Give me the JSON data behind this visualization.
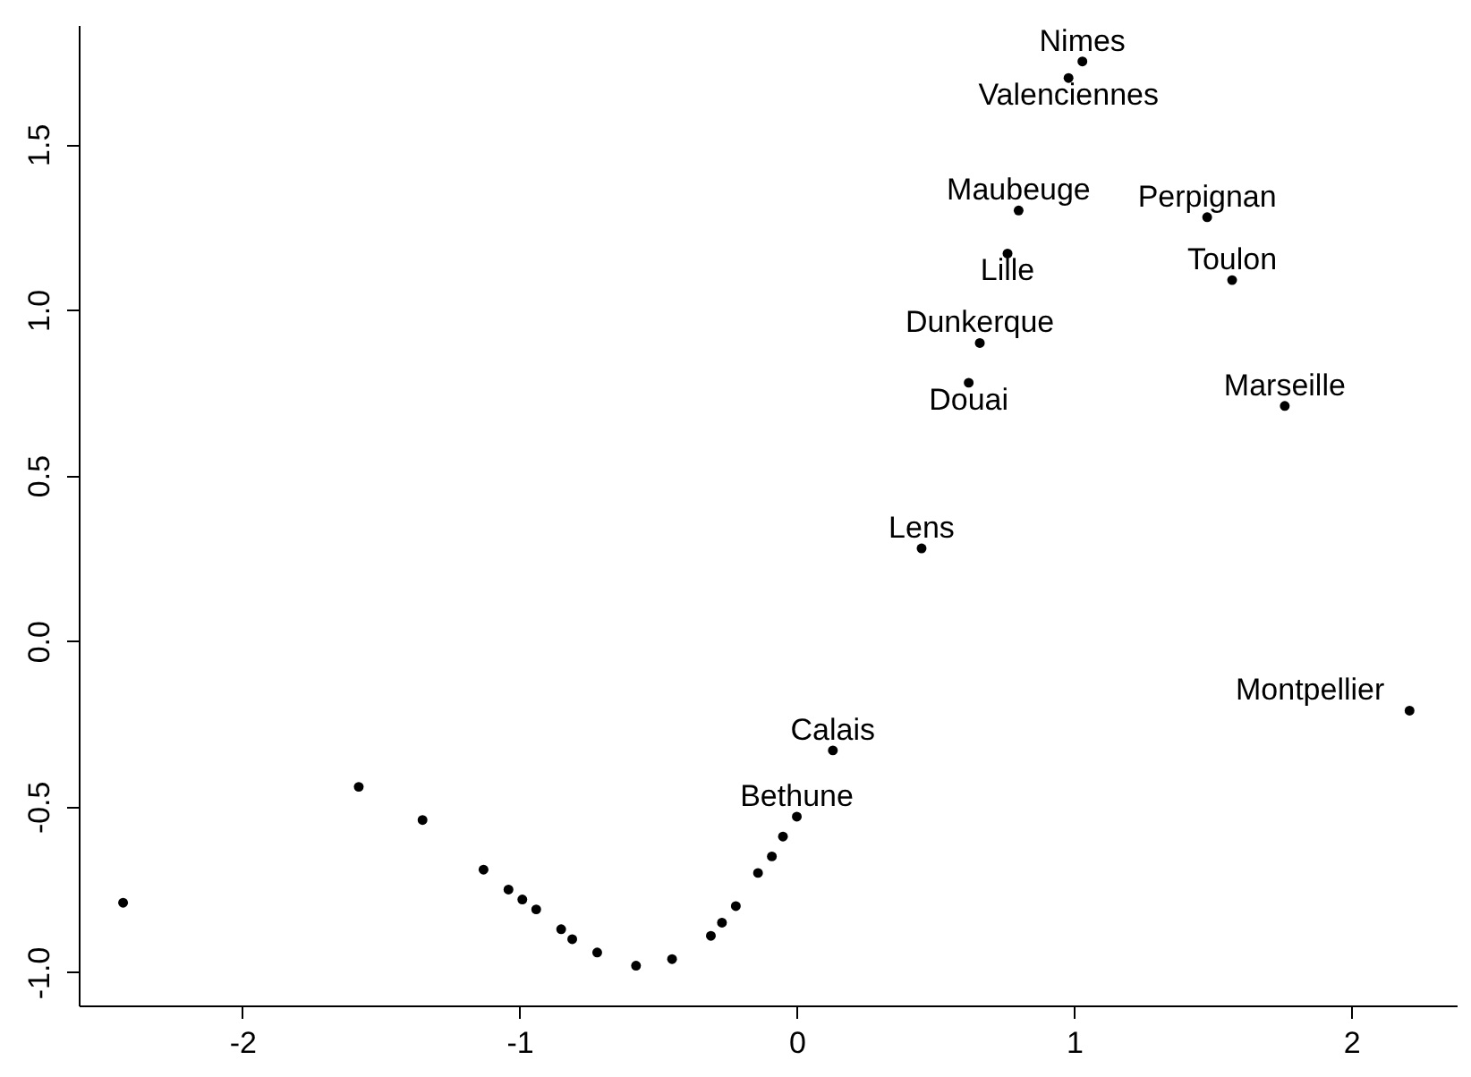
{
  "chart_data": {
    "type": "scatter",
    "x": [
      -2.43,
      -1.58,
      -1.35,
      -1.13,
      -1.04,
      -0.99,
      -0.94,
      -0.85,
      -0.81,
      -0.72,
      -0.58,
      -0.45,
      -0.31,
      -0.27,
      -0.22,
      -0.14,
      -0.09,
      -0.05,
      0.0,
      0.13,
      2.21,
      1.03,
      0.98,
      0.8,
      0.76,
      1.48,
      1.57,
      0.66,
      0.62,
      1.76,
      0.45
    ],
    "values": [
      -0.79,
      -0.44,
      -0.54,
      -0.69,
      -0.75,
      -0.78,
      -0.81,
      -0.87,
      -0.9,
      -0.94,
      -0.98,
      -0.96,
      -0.89,
      -0.85,
      -0.8,
      -0.7,
      -0.65,
      -0.59,
      -0.53,
      -0.33,
      -0.21,
      1.75,
      1.7,
      1.3,
      1.17,
      1.28,
      1.09,
      0.9,
      0.78,
      0.71,
      0.28
    ],
    "color": "#000000",
    "marker": "circle",
    "xlim": [
      -2.59,
      2.38
    ],
    "ylim": [
      -1.1,
      1.86
    ],
    "xticks": [
      -2,
      -1,
      0,
      1,
      2
    ],
    "yticks": [
      {
        "value": -1,
        "label": "-1.0"
      },
      -0.5,
      {
        "value": 0,
        "label": "0.0"
      },
      0.5,
      {
        "value": 1,
        "label": "1.0"
      },
      1.5
    ],
    "grid": false,
    "annotations": [
      {
        "text": "Bethune",
        "x": 0.0,
        "y": -0.53
      },
      {
        "text": "Calais",
        "x": 0.13,
        "y": -0.33
      },
      {
        "text": "Montpellier",
        "x": 2.21,
        "y": -0.21
      },
      {
        "text": "Nimes",
        "x": 1.03,
        "y": 1.75
      },
      {
        "text": "Valenciennes",
        "x": 0.98,
        "y": 1.7
      },
      {
        "text": "Maubeuge",
        "x": 0.8,
        "y": 1.3
      },
      {
        "text": "Lille",
        "x": 0.76,
        "y": 1.17
      },
      {
        "text": "Perpignan",
        "x": 1.48,
        "y": 1.28
      },
      {
        "text": "Toulon",
        "x": 1.57,
        "y": 1.09
      },
      {
        "text": "Dunkerque",
        "x": 0.66,
        "y": 0.9
      },
      {
        "text": "Douai",
        "x": 0.62,
        "y": 0.78
      },
      {
        "text": "Marseille",
        "x": 1.76,
        "y": 0.71
      },
      {
        "text": "Lens",
        "x": 0.45,
        "y": 0.28
      }
    ]
  }
}
